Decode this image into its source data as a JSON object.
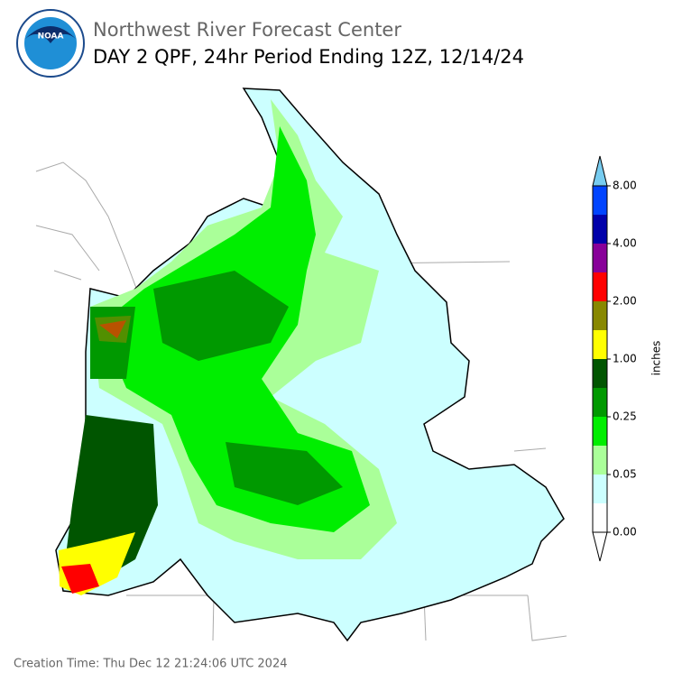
{
  "logo": {
    "text": "NOAA"
  },
  "header": {
    "title": "Northwest River Forecast Center",
    "subtitle": "DAY 2 QPF, 24hr Period Ending 12Z, 12/14/24"
  },
  "legend": {
    "label": "inches",
    "colors": [
      "#ffffff",
      "#ccffff",
      "#aaff99",
      "#00ee00",
      "#009900",
      "#005500",
      "#ffff00",
      "#888800",
      "#ff0000",
      "#880099",
      "#0000aa",
      "#0044ff"
    ],
    "extend_low_color": "#ffffff",
    "extend_high_color": "#77ccf0",
    "ticks": [
      {
        "value": 0,
        "label": "0.00"
      },
      {
        "value": 0.05,
        "label": "0.05"
      },
      {
        "value": 0.25,
        "label": "0.25"
      },
      {
        "value": 1,
        "label": "1.00"
      },
      {
        "value": 2,
        "label": "2.00"
      },
      {
        "value": 4,
        "label": "4.00"
      },
      {
        "value": 8,
        "label": "8.00"
      }
    ]
  },
  "footer": {
    "creation_time": "Creation Time: Thu Dec 12 21:24:06 UTC 2024"
  }
}
